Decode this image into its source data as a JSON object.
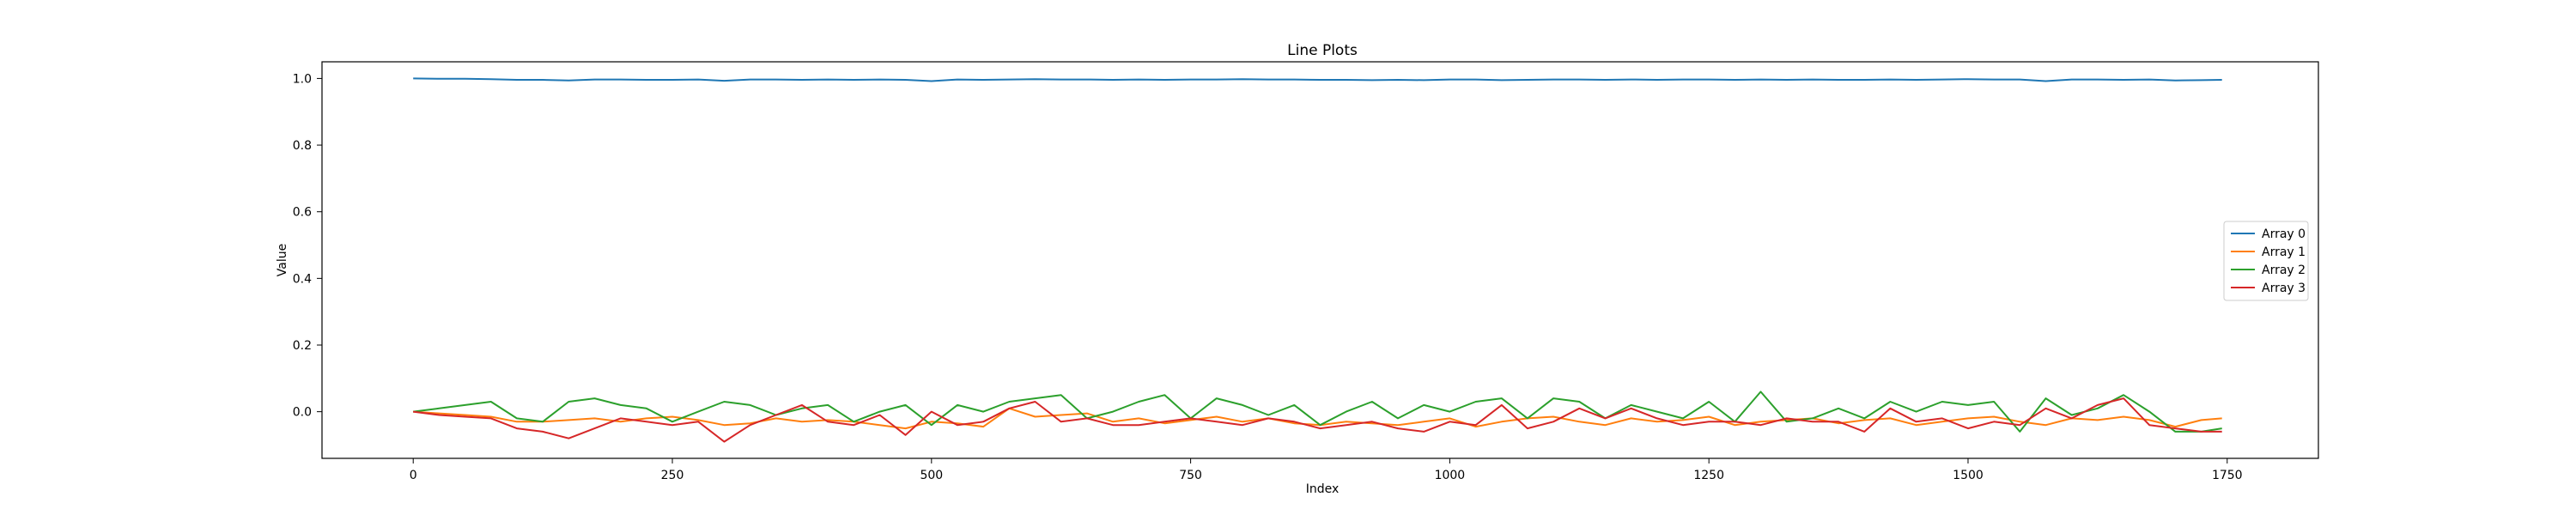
{
  "chart_data": {
    "type": "line",
    "title": "Line Plots",
    "xlabel": "Index",
    "ylabel": "Value",
    "xlim": [
      -88,
      1838
    ],
    "ylim": [
      -0.14,
      1.05
    ],
    "xticks": [
      0,
      250,
      500,
      750,
      1000,
      1250,
      1500,
      1750
    ],
    "yticks": [
      0.0,
      0.2,
      0.4,
      0.6,
      0.8,
      1.0
    ],
    "xtick_labels": [
      "0",
      "250",
      "500",
      "750",
      "1000",
      "1250",
      "1500",
      "1750"
    ],
    "ytick_labels": [
      "0.0",
      "0.2",
      "0.4",
      "0.6",
      "0.8",
      "1.0"
    ],
    "grid": false,
    "legend_position": "center-right",
    "x": [
      0,
      25,
      50,
      75,
      100,
      125,
      150,
      175,
      200,
      225,
      250,
      275,
      300,
      325,
      350,
      375,
      400,
      425,
      450,
      475,
      500,
      525,
      550,
      575,
      600,
      625,
      650,
      675,
      700,
      725,
      750,
      775,
      800,
      825,
      850,
      875,
      900,
      925,
      950,
      975,
      1000,
      1025,
      1050,
      1075,
      1100,
      1125,
      1150,
      1175,
      1200,
      1225,
      1250,
      1275,
      1300,
      1325,
      1350,
      1375,
      1400,
      1425,
      1450,
      1475,
      1500,
      1525,
      1550,
      1575,
      1600,
      1625,
      1650,
      1675,
      1700,
      1725,
      1745
    ],
    "series": [
      {
        "name": "Array 0",
        "color": "#1f77b4",
        "values": [
          1.0,
          0.999,
          0.999,
          0.998,
          0.996,
          0.996,
          0.994,
          0.997,
          0.997,
          0.996,
          0.996,
          0.997,
          0.993,
          0.997,
          0.997,
          0.996,
          0.997,
          0.996,
          0.997,
          0.996,
          0.992,
          0.997,
          0.996,
          0.997,
          0.998,
          0.997,
          0.997,
          0.996,
          0.997,
          0.996,
          0.997,
          0.997,
          0.998,
          0.997,
          0.997,
          0.996,
          0.996,
          0.995,
          0.996,
          0.995,
          0.997,
          0.997,
          0.995,
          0.996,
          0.997,
          0.997,
          0.996,
          0.997,
          0.996,
          0.997,
          0.997,
          0.996,
          0.997,
          0.996,
          0.997,
          0.996,
          0.996,
          0.997,
          0.996,
          0.997,
          0.998,
          0.997,
          0.997,
          0.992,
          0.997,
          0.997,
          0.996,
          0.997,
          0.994,
          0.995,
          0.996
        ]
      },
      {
        "name": "Array 1",
        "color": "#ff7f0e",
        "values": [
          0.0,
          -0.005,
          -0.01,
          -0.015,
          -0.03,
          -0.03,
          -0.025,
          -0.02,
          -0.03,
          -0.02,
          -0.015,
          -0.025,
          -0.04,
          -0.035,
          -0.02,
          -0.03,
          -0.025,
          -0.03,
          -0.04,
          -0.05,
          -0.03,
          -0.035,
          -0.045,
          0.01,
          -0.015,
          -0.01,
          -0.005,
          -0.03,
          -0.02,
          -0.035,
          -0.025,
          -0.015,
          -0.03,
          -0.02,
          -0.035,
          -0.04,
          -0.03,
          -0.035,
          -0.04,
          -0.03,
          -0.02,
          -0.045,
          -0.03,
          -0.02,
          -0.015,
          -0.03,
          -0.04,
          -0.02,
          -0.03,
          -0.025,
          -0.015,
          -0.04,
          -0.03,
          -0.025,
          -0.02,
          -0.035,
          -0.025,
          -0.02,
          -0.04,
          -0.03,
          -0.02,
          -0.015,
          -0.03,
          -0.04,
          -0.02,
          -0.025,
          -0.015,
          -0.025,
          -0.045,
          -0.025,
          -0.02
        ]
      },
      {
        "name": "Array 2",
        "color": "#2ca02c",
        "values": [
          0.0,
          0.01,
          0.02,
          0.03,
          -0.02,
          -0.03,
          0.03,
          0.04,
          0.02,
          0.01,
          -0.03,
          0.0,
          0.03,
          0.02,
          -0.01,
          0.01,
          0.02,
          -0.03,
          0.0,
          0.02,
          -0.04,
          0.02,
          0.0,
          0.03,
          0.04,
          0.05,
          -0.02,
          0.0,
          0.03,
          0.05,
          -0.02,
          0.04,
          0.02,
          -0.01,
          0.02,
          -0.04,
          0.0,
          0.03,
          -0.02,
          0.02,
          0.0,
          0.03,
          0.04,
          -0.02,
          0.04,
          0.03,
          -0.02,
          0.02,
          0.0,
          -0.02,
          0.03,
          -0.03,
          0.06,
          -0.03,
          -0.02,
          0.01,
          -0.02,
          0.03,
          0.0,
          0.03,
          0.02,
          0.03,
          -0.06,
          0.04,
          -0.01,
          0.01,
          0.05,
          0.0,
          -0.06,
          -0.06,
          -0.05
        ]
      },
      {
        "name": "Array 3",
        "color": "#d62728",
        "values": [
          0.0,
          -0.01,
          -0.015,
          -0.02,
          -0.05,
          -0.06,
          -0.08,
          -0.05,
          -0.02,
          -0.03,
          -0.04,
          -0.03,
          -0.09,
          -0.04,
          -0.01,
          0.02,
          -0.03,
          -0.04,
          -0.01,
          -0.07,
          0.0,
          -0.04,
          -0.03,
          0.01,
          0.03,
          -0.03,
          -0.02,
          -0.04,
          -0.04,
          -0.03,
          -0.02,
          -0.03,
          -0.04,
          -0.02,
          -0.03,
          -0.05,
          -0.04,
          -0.03,
          -0.05,
          -0.06,
          -0.03,
          -0.04,
          0.02,
          -0.05,
          -0.03,
          0.01,
          -0.02,
          0.01,
          -0.02,
          -0.04,
          -0.03,
          -0.03,
          -0.04,
          -0.02,
          -0.03,
          -0.03,
          -0.06,
          0.01,
          -0.03,
          -0.02,
          -0.05,
          -0.03,
          -0.04,
          0.01,
          -0.02,
          0.02,
          0.04,
          -0.04,
          -0.05,
          -0.06,
          -0.06
        ]
      }
    ]
  }
}
